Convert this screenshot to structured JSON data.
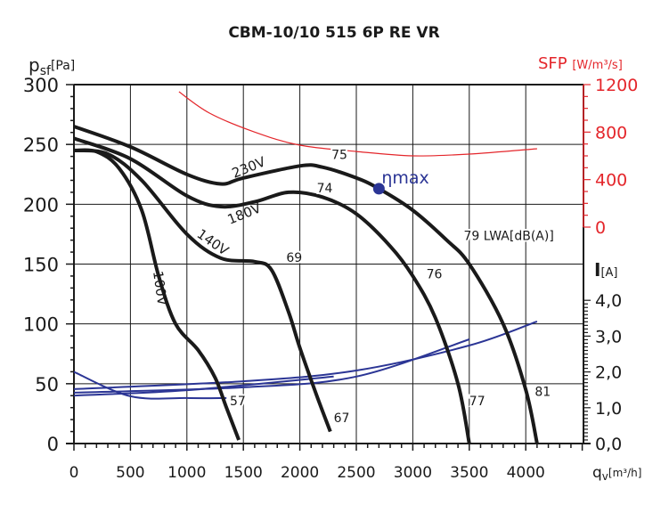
{
  "chart_data": {
    "type": "line",
    "title": "CBM-10/10 515 6P RE VR",
    "xlabel": "qv[m³/h]",
    "xlabel_main": "q",
    "xlabel_sub": "v",
    "xlabel_unit": "[m³/h]",
    "ylabel_main": "p",
    "ylabel_sub": "sf",
    "ylabel_unit": "[Pa]",
    "y2label_main": "SFP",
    "y2label_unit": "[W/m³/s]",
    "y3label_main": "I",
    "y3label_unit": "[A]",
    "xlim": [
      0,
      4500
    ],
    "ylim": [
      0,
      300
    ],
    "y2lim": [
      0,
      1200
    ],
    "y3lim": [
      0,
      4.0
    ],
    "grid": true,
    "x_ticks": [
      "0",
      "500",
      "1000",
      "1500",
      "2000",
      "2500",
      "3000",
      "3500",
      "4000"
    ],
    "y_ticks": [
      "0",
      "50",
      "100",
      "150",
      "200",
      "250",
      "300"
    ],
    "y2_ticks": [
      "0",
      "400",
      "800",
      "1200"
    ],
    "y3_ticks": [
      "0,0",
      "1,0",
      "2,0",
      "3,0",
      "4,0"
    ],
    "colors": {
      "pressure": "#1a1a1a",
      "sfp": "#e4262b",
      "current": "#2b3595",
      "axis": "#1a1a1a"
    },
    "pressure_series": [
      {
        "name": "230V",
        "x": [
          0,
          500,
          1000,
          1300,
          1500,
          2000,
          2200,
          2500,
          2700,
          3000,
          3300,
          3500,
          3800,
          4000,
          4100
        ],
        "y": [
          265,
          248,
          225,
          217,
          222,
          232,
          231,
          222,
          213,
          195,
          170,
          150,
          100,
          45,
          0
        ]
      },
      {
        "name": "180V",
        "x": [
          0,
          500,
          1000,
          1300,
          1600,
          1900,
          2200,
          2500,
          2800,
          3000,
          3200,
          3400,
          3500
        ],
        "y": [
          255,
          238,
          207,
          198,
          202,
          210,
          206,
          192,
          165,
          140,
          105,
          50,
          0
        ]
      },
      {
        "name": "140V",
        "x": [
          0,
          300,
          600,
          1000,
          1300,
          1600,
          1750,
          1900,
          2000,
          2150,
          2270
        ],
        "y": [
          245,
          242,
          220,
          175,
          155,
          152,
          145,
          110,
          80,
          40,
          10
        ]
      },
      {
        "name": "100V",
        "x": [
          0,
          200,
          400,
          600,
          750,
          900,
          1100,
          1250,
          1350,
          1460
        ],
        "y": [
          245,
          244,
          230,
          195,
          140,
          100,
          78,
          55,
          30,
          3
        ]
      }
    ],
    "sfp_series": {
      "name": "SFP",
      "x": [
        930,
        1200,
        1600,
        2000,
        2500,
        3000,
        3500,
        4100
      ],
      "y": [
        1140,
        960,
        800,
        690,
        637,
        600,
        615,
        660
      ]
    },
    "current_series": [
      {
        "name": "230V",
        "x": [
          0,
          1500,
          2500,
          3500,
          4100
        ],
        "y": [
          1.52,
          1.74,
          2.04,
          2.74,
          3.41
        ]
      },
      {
        "name": "180V",
        "x": [
          0,
          1500,
          2500,
          3500
        ],
        "y": [
          1.42,
          1.57,
          1.87,
          2.91
        ]
      },
      {
        "name": "140V",
        "x": [
          0,
          1000,
          2300
        ],
        "y": [
          1.34,
          1.49,
          1.87
        ]
      },
      {
        "name": "100V",
        "x": [
          0,
          500,
          1000,
          1350
        ],
        "y": [
          2.0,
          1.32,
          1.27,
          1.27
        ]
      }
    ],
    "voltage_labels": [
      "230V",
      "180V",
      "140V",
      "100V"
    ],
    "noise_labels": [
      {
        "text": "75",
        "x": 2280,
        "y": 238
      },
      {
        "text": "74",
        "x": 2150,
        "y": 210
      },
      {
        "text": "69",
        "x": 1880,
        "y": 152
      },
      {
        "text": "57",
        "x": 1380,
        "y": 32
      },
      {
        "text": "67",
        "x": 2300,
        "y": 18
      },
      {
        "text": "76",
        "x": 3120,
        "y": 138
      },
      {
        "text": "77",
        "x": 3500,
        "y": 32
      },
      {
        "text": "81",
        "x": 4080,
        "y": 40
      },
      {
        "text": "79 LWA[dB(A)]",
        "x": 3450,
        "y": 170
      }
    ],
    "eta_max": {
      "label": "ηmax",
      "x": 2700,
      "y": 213
    }
  }
}
